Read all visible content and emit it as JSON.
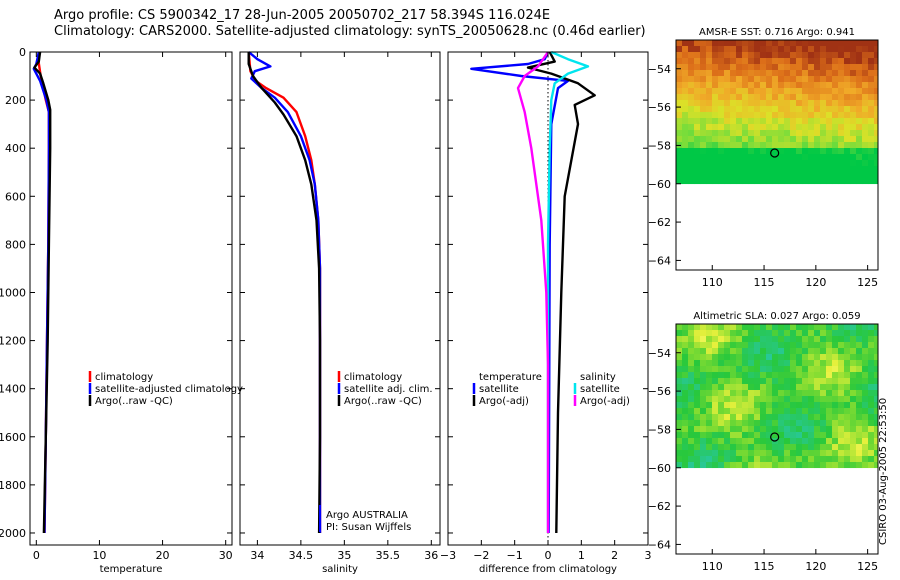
{
  "header": {
    "line1": "Argo profile: CS 5900342_17 28-Jun-2005 20050702_217 58.394S 116.024E",
    "line2": "Climatology: CARS2000. Satellite-adjusted climatology: synTS_20050628.nc (0.46d earlier)"
  },
  "stamp": "CSIRO 03-Aug-2005 22:53:50",
  "colors": {
    "red": "#ff0000",
    "blue": "#0000ff",
    "black": "#000000",
    "cyan": "#00e5ee",
    "magenta": "#ff00ff"
  },
  "chart_data": [
    {
      "type": "line",
      "title": "",
      "xlabel": "temperature",
      "ylabel": "",
      "xlim": [
        -1,
        31
      ],
      "ylim": [
        2050,
        0
      ],
      "xticks": [
        0,
        10,
        20,
        30
      ],
      "yticks": [
        0,
        200,
        400,
        600,
        800,
        1000,
        1200,
        1400,
        1600,
        1800,
        2000
      ],
      "legend": [
        "climatology",
        "satellite-adjusted climatology",
        "Argo(..raw -QC)"
      ],
      "series": [
        {
          "name": "climatology",
          "color": "red",
          "points": [
            [
              0.5,
              0
            ],
            [
              0.3,
              30
            ],
            [
              0.7,
              100
            ],
            [
              1.5,
              200
            ],
            [
              2.0,
              250
            ],
            [
              2.0,
              400
            ],
            [
              1.9,
              800
            ],
            [
              1.7,
              1200
            ],
            [
              1.5,
              1600
            ],
            [
              1.3,
              2000
            ]
          ]
        },
        {
          "name": "satellite-adjusted climatology",
          "color": "blue",
          "points": [
            [
              0.4,
              0
            ],
            [
              0,
              50
            ],
            [
              -0.4,
              70
            ],
            [
              0.6,
              120
            ],
            [
              1.6,
              200
            ],
            [
              2.0,
              250
            ],
            [
              2.0,
              400
            ],
            [
              1.9,
              800
            ],
            [
              1.7,
              1200
            ],
            [
              1.5,
              1600
            ],
            [
              1.3,
              2000
            ]
          ]
        },
        {
          "name": "Argo(..raw -QC)",
          "color": "black",
          "points": [
            [
              0.6,
              0
            ],
            [
              0.4,
              40
            ],
            [
              -0.3,
              65
            ],
            [
              0.6,
              90
            ],
            [
              1.1,
              130
            ],
            [
              1.9,
              200
            ],
            [
              2.2,
              240
            ],
            [
              2.2,
              400
            ],
            [
              2.0,
              800
            ],
            [
              1.8,
              1200
            ],
            [
              1.5,
              1600
            ],
            [
              1.2,
              2000
            ]
          ]
        }
      ]
    },
    {
      "type": "line",
      "title": "",
      "xlabel": "salinity",
      "ylabel": "",
      "xlim": [
        33.8,
        36.1
      ],
      "ylim": [
        2050,
        0
      ],
      "xticks": [
        34,
        34.5,
        35,
        35.5,
        36
      ],
      "yticks": [
        0,
        200,
        400,
        600,
        800,
        1000,
        1200,
        1400,
        1600,
        1800,
        2000
      ],
      "legend": [
        "climatology",
        "satellite adj. clim.",
        "Argo(..raw -QC)"
      ],
      "annotation": [
        "Argo AUSTRALIA",
        "PI: Susan Wijffels"
      ],
      "series": [
        {
          "name": "climatology",
          "color": "red",
          "points": [
            [
              33.9,
              0
            ],
            [
              33.92,
              80
            ],
            [
              33.98,
              120
            ],
            [
              34.1,
              150
            ],
            [
              34.3,
              190
            ],
            [
              34.45,
              250
            ],
            [
              34.55,
              350
            ],
            [
              34.62,
              450
            ],
            [
              34.66,
              550
            ],
            [
              34.7,
              700
            ],
            [
              34.72,
              900
            ],
            [
              34.72,
              1200
            ],
            [
              34.72,
              1600
            ],
            [
              34.72,
              2000
            ]
          ]
        },
        {
          "name": "satellite adj. clim.",
          "color": "blue",
          "points": [
            [
              33.9,
              0
            ],
            [
              34.0,
              30
            ],
            [
              34.15,
              60
            ],
            [
              33.97,
              80
            ],
            [
              33.93,
              110
            ],
            [
              34.05,
              150
            ],
            [
              34.2,
              190
            ],
            [
              34.35,
              250
            ],
            [
              34.5,
              350
            ],
            [
              34.6,
              450
            ],
            [
              34.66,
              550
            ],
            [
              34.7,
              700
            ],
            [
              34.72,
              900
            ],
            [
              34.72,
              1200
            ],
            [
              34.72,
              1600
            ],
            [
              34.72,
              2000
            ]
          ]
        },
        {
          "name": "Argo(..raw -QC)",
          "color": "black",
          "points": [
            [
              33.9,
              0
            ],
            [
              33.9,
              50
            ],
            [
              33.95,
              100
            ],
            [
              34.05,
              150
            ],
            [
              34.2,
              210
            ],
            [
              34.3,
              260
            ],
            [
              34.45,
              350
            ],
            [
              34.55,
              450
            ],
            [
              34.62,
              550
            ],
            [
              34.68,
              700
            ],
            [
              34.71,
              900
            ],
            [
              34.72,
              1200
            ],
            [
              34.72,
              1600
            ],
            [
              34.71,
              2000
            ]
          ]
        }
      ]
    },
    {
      "type": "line",
      "title": "",
      "xlabel": "difference from climatology",
      "ylabel": "",
      "xlim": [
        -3,
        3
      ],
      "ylim": [
        2050,
        0
      ],
      "xticks": [
        -3,
        -2,
        -1,
        0,
        1,
        2,
        3
      ],
      "yticks": [
        0,
        200,
        400,
        600,
        800,
        1000,
        1200,
        1400,
        1600,
        1800,
        2000
      ],
      "legend": [
        "temperature",
        "satellite",
        "Argo(-adj)",
        "salinity",
        "satellite",
        "Argo(-adj)"
      ],
      "series": [
        {
          "name": "temperature satellite",
          "color": "blue",
          "points": [
            [
              0,
              0
            ],
            [
              -0.1,
              30
            ],
            [
              -0.6,
              50
            ],
            [
              -2.3,
              70
            ],
            [
              -0.8,
              100
            ],
            [
              0.6,
              120
            ],
            [
              0.3,
              150
            ],
            [
              0.1,
              300
            ],
            [
              0.05,
              800
            ],
            [
              0.02,
              2000
            ]
          ]
        },
        {
          "name": "temperature Argo(-adj)",
          "color": "black",
          "points": [
            [
              0.05,
              0
            ],
            [
              0.2,
              40
            ],
            [
              -0.6,
              65
            ],
            [
              0.1,
              90
            ],
            [
              0.9,
              130
            ],
            [
              1.4,
              180
            ],
            [
              0.8,
              220
            ],
            [
              0.9,
              300
            ],
            [
              0.5,
              600
            ],
            [
              0.4,
              1000
            ],
            [
              0.3,
              1500
            ],
            [
              0.25,
              2000
            ]
          ]
        },
        {
          "name": "salinity satellite",
          "color": "cyan",
          "points": [
            [
              0.1,
              0
            ],
            [
              0.6,
              30
            ],
            [
              1.2,
              60
            ],
            [
              0.6,
              90
            ],
            [
              0.2,
              130
            ],
            [
              0.1,
              200
            ],
            [
              0.05,
              400
            ],
            [
              0,
              800
            ],
            [
              0,
              1200
            ],
            [
              0,
              1600
            ],
            [
              0,
              2000
            ]
          ]
        },
        {
          "name": "salinity Argo(-adj)",
          "color": "magenta",
          "points": [
            [
              0,
              0
            ],
            [
              -0.3,
              60
            ],
            [
              -0.7,
              100
            ],
            [
              -0.9,
              150
            ],
            [
              -0.7,
              250
            ],
            [
              -0.5,
              400
            ],
            [
              -0.2,
              700
            ],
            [
              -0.05,
              1000
            ],
            [
              0,
              1300
            ],
            [
              0,
              2000
            ]
          ]
        }
      ]
    },
    {
      "type": "heatmap",
      "title": "AMSR-E SST: 0.716 Argo: 0.941",
      "xticks": [
        110,
        115,
        120,
        125
      ],
      "yticks": [
        -54,
        -56,
        -58,
        -60,
        -62,
        -64
      ],
      "xlim": [
        106.5,
        126
      ],
      "ylim": [
        -64.5,
        -52.5
      ],
      "data_extent": {
        "lat": [
          -60,
          -52.5
        ],
        "lon": [
          106.5,
          126
        ]
      },
      "marker": {
        "lon": 116.024,
        "lat": -58.394
      }
    },
    {
      "type": "heatmap",
      "title": "Altimetric SLA: 0.027 Argo: 0.059",
      "xticks": [
        110,
        115,
        120,
        125
      ],
      "yticks": [
        -54,
        -56,
        -58,
        -60,
        -62,
        -64
      ],
      "xlim": [
        106.5,
        126
      ],
      "ylim": [
        -64.5,
        -52.5
      ],
      "data_extent": {
        "lat": [
          -60,
          -52.5
        ],
        "lon": [
          106.5,
          126
        ]
      },
      "marker": {
        "lon": 116.024,
        "lat": -58.394
      }
    }
  ]
}
